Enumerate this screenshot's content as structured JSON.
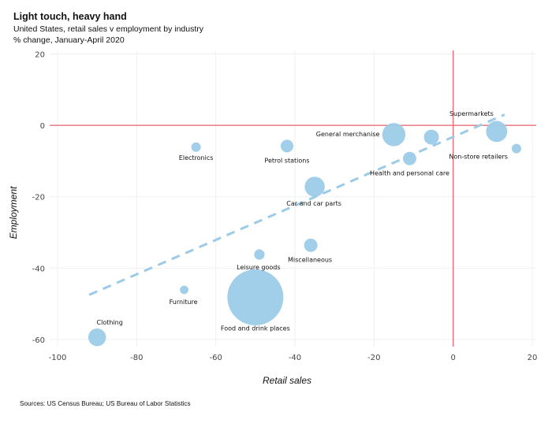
{
  "header": {
    "title": "Light touch, heavy hand",
    "subtitle": "United States, retail sales v employment by industry",
    "subtitle2": "% change, January-April 2020"
  },
  "footer": {
    "source": "Sources: US Census Bureau; US Bureau of Labor Statistics"
  },
  "colors": {
    "bubble": "#9ccbe8",
    "trend": "#9ccbe8",
    "zero_line": "#e8606a",
    "grid": "#eef0f2"
  },
  "chart_data": {
    "type": "scatter",
    "title": "Light touch, heavy hand",
    "subtitle": "United States, retail sales v employment by industry",
    "xlabel": "Retail sales",
    "ylabel": "Employment",
    "xlim": [
      -102,
      21
    ],
    "ylim": [
      -62,
      21
    ],
    "xticks": [
      -100,
      -80,
      -60,
      -40,
      -20,
      0,
      20
    ],
    "yticks": [
      20,
      0,
      -20,
      -40,
      -60
    ],
    "grid": true,
    "bubble_size_encoded": true,
    "trendline": {
      "style": "dashed",
      "x": [
        -92,
        13
      ],
      "y": [
        -47.5,
        3
      ]
    },
    "zero_lines": {
      "x": 0,
      "y": 0
    },
    "points": [
      {
        "label": "Supermarkets",
        "x": 11,
        "y": -1.7,
        "size": 5
      },
      {
        "label": "General merchanise",
        "x": -15,
        "y": -2.6,
        "size": 6
      },
      {
        "label": "",
        "x": -5.5,
        "y": -3.3,
        "size": 2.5
      },
      {
        "label": "Non-store retailers",
        "x": 16,
        "y": -6.5,
        "size": 1
      },
      {
        "label": "Health and personal care",
        "x": -11,
        "y": -9.3,
        "size": 2
      },
      {
        "label": "Electronics",
        "x": -65,
        "y": -6.1,
        "size": 1
      },
      {
        "label": "Petrol stations",
        "x": -42,
        "y": -5.8,
        "size": 1.8
      },
      {
        "label": "Car and car parts",
        "x": -35,
        "y": -17.2,
        "size": 4.5
      },
      {
        "label": "Miscellaneous",
        "x": -36,
        "y": -33.6,
        "size": 2
      },
      {
        "label": "Leisure goods",
        "x": -49,
        "y": -36.2,
        "size": 1.2
      },
      {
        "label": "Furniture",
        "x": -68,
        "y": -46.1,
        "size": 0.8
      },
      {
        "label": "Food and drink places",
        "x": -50,
        "y": -48.2,
        "size": 35
      },
      {
        "label": "Clothing",
        "x": -90,
        "y": -59.4,
        "size": 3.5
      }
    ]
  }
}
